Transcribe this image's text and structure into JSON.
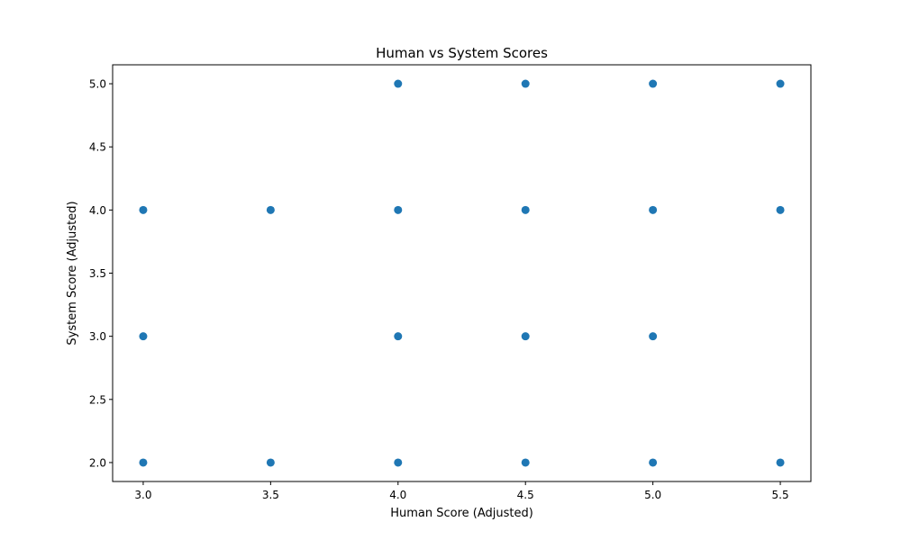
{
  "chart_data": {
    "type": "scatter",
    "title": "Human vs System Scores",
    "xlabel": "Human Score (Adjusted)",
    "ylabel": "System Score (Adjusted)",
    "xlim": [
      2.88,
      5.62
    ],
    "ylim": [
      1.85,
      5.15
    ],
    "xticks": [
      3.0,
      3.5,
      4.0,
      4.5,
      5.0,
      5.5
    ],
    "yticks": [
      2.0,
      2.5,
      3.0,
      3.5,
      4.0,
      4.5,
      5.0
    ],
    "xtick_labels": [
      "3.0",
      "3.5",
      "4.0",
      "4.5",
      "5.0",
      "5.5"
    ],
    "ytick_labels": [
      "2.0",
      "2.5",
      "3.0",
      "3.5",
      "4.0",
      "4.5",
      "5.0"
    ],
    "grid": false,
    "marker_color": "#1f77b4",
    "points": [
      {
        "x": 3.0,
        "y": 4.0
      },
      {
        "x": 3.0,
        "y": 3.0
      },
      {
        "x": 3.0,
        "y": 2.0
      },
      {
        "x": 3.5,
        "y": 4.0
      },
      {
        "x": 3.5,
        "y": 2.0
      },
      {
        "x": 4.0,
        "y": 5.0
      },
      {
        "x": 4.0,
        "y": 4.0
      },
      {
        "x": 4.0,
        "y": 3.0
      },
      {
        "x": 4.0,
        "y": 2.0
      },
      {
        "x": 4.5,
        "y": 5.0
      },
      {
        "x": 4.5,
        "y": 4.0
      },
      {
        "x": 4.5,
        "y": 3.0
      },
      {
        "x": 4.5,
        "y": 2.0
      },
      {
        "x": 5.0,
        "y": 5.0
      },
      {
        "x": 5.0,
        "y": 4.0
      },
      {
        "x": 5.0,
        "y": 3.0
      },
      {
        "x": 5.0,
        "y": 2.0
      },
      {
        "x": 5.5,
        "y": 5.0
      },
      {
        "x": 5.5,
        "y": 4.0
      },
      {
        "x": 5.5,
        "y": 2.0
      }
    ]
  }
}
